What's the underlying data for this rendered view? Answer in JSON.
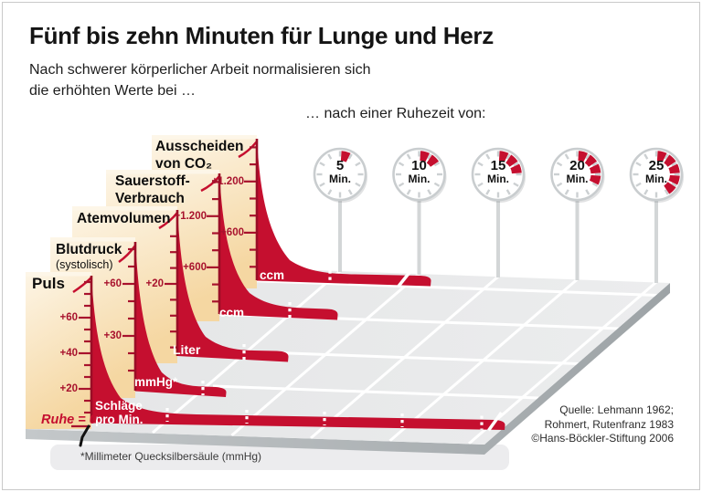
{
  "header": {
    "title": "Fünf bis zehn Minuten für Lunge und Herz",
    "subtitle_line1": "Nach schwerer körperlicher Arbeit normalisieren sich",
    "subtitle_line2": "die erhöhten Werte bei …",
    "rest_period_label": "… nach einer Ruhezeit von:"
  },
  "clocks": [
    {
      "value": "5",
      "unit": "Min."
    },
    {
      "value": "10",
      "unit": "Min."
    },
    {
      "value": "15",
      "unit": "Min."
    },
    {
      "value": "20",
      "unit": "Min."
    },
    {
      "value": "25",
      "unit": "Min."
    }
  ],
  "panels": [
    {
      "id": "puls",
      "label": "Puls",
      "sublabel": "",
      "label2": "",
      "unit_line1": "Schläge",
      "unit_line2": "pro Min.",
      "tick_labels": [
        "+60",
        "+40",
        "+20"
      ]
    },
    {
      "id": "blutdruck",
      "label": "Blutdruck",
      "sublabel": "(systolisch)",
      "label2": "",
      "unit_line1": "mmHg*",
      "unit_line2": "",
      "tick_labels": [
        "+60",
        "+30"
      ]
    },
    {
      "id": "atemvolumen",
      "label": "Atemvolumen",
      "sublabel": "",
      "label2": "",
      "unit_line1": "Liter",
      "unit_line2": "",
      "tick_labels": [
        "+20"
      ]
    },
    {
      "id": "sauerstoff",
      "label": "Sauerstoff-",
      "sublabel": "",
      "label2": "Verbrauch",
      "unit_line1": "ccm",
      "unit_line2": "",
      "tick_labels": [
        "+1.200",
        "+600"
      ]
    },
    {
      "id": "co2",
      "label": "Ausscheiden",
      "sublabel": "",
      "label2": "von CO₂",
      "unit_line1": "ccm",
      "unit_line2": "",
      "tick_labels": [
        "+1.200",
        "+600"
      ]
    }
  ],
  "baseline_label": "Ruhe = 0",
  "footnote": "*Millimeter Quecksilbersäule (mmHg)",
  "source_lines": [
    "Quelle: Lehmann 1962;",
    "Rohmert, Rutenfranz 1983",
    "©Hans-Böckler-Stiftung 2006"
  ],
  "colors": {
    "curve_red": "#c50f2f",
    "dark_red": "#a8122d",
    "panel_cream_light": "#fdf5e6",
    "panel_cream_dark": "#f6d9a5",
    "floor_gray": "#e8e9ea",
    "floor_side_gray": "#a8adb0",
    "clock_gray": "#c9cdcf"
  },
  "chart_data": {
    "type": "area",
    "title": "Fünf bis zehn Minuten für Lunge und Herz",
    "subtitle": "Nach schwerer körperlicher Arbeit normalisieren sich die erhöhten Werte bei …",
    "xlabel": "… nach einer Ruhezeit von: (Min.)",
    "x_ticks_min": [
      5,
      10,
      15,
      20,
      25
    ],
    "baseline": "Ruhe = 0",
    "grid": true,
    "legend_position": "none",
    "series": [
      {
        "name": "Puls",
        "unit": "Schläge pro Min.",
        "y_axis_labels_visible": [
          "+60",
          "+40",
          "+20"
        ],
        "approx_normalization_min": 26,
        "relative_elevation_at_min": {
          "0": 1.0,
          "5": 0.1,
          "10": 0.06,
          "15": 0.04,
          "20": 0.03,
          "25": 0.02
        }
      },
      {
        "name": "Blutdruck (systolisch)",
        "unit": "mmHg",
        "y_axis_labels_visible": [
          "+60",
          "+30"
        ],
        "approx_normalization_min": 7,
        "relative_elevation_at_min": {
          "0": 1.0,
          "5": 0.07,
          "10": 0.0,
          "15": 0.0,
          "20": 0.0,
          "25": 0.0
        }
      },
      {
        "name": "Atemvolumen",
        "unit": "Liter",
        "y_axis_labels_visible": [
          "+20"
        ],
        "approx_normalization_min": 8,
        "relative_elevation_at_min": {
          "0": 1.0,
          "5": 0.08,
          "10": 0.0,
          "15": 0.0,
          "20": 0.0,
          "25": 0.0
        }
      },
      {
        "name": "Sauerstoff-Verbrauch",
        "unit": "ccm",
        "y_axis_labels_visible": [
          "+1.200",
          "+600"
        ],
        "approx_normalization_min": 8,
        "relative_elevation_at_min": {
          "0": 1.0,
          "5": 0.08,
          "10": 0.0,
          "15": 0.0,
          "20": 0.0,
          "25": 0.0
        }
      },
      {
        "name": "Ausscheiden von CO₂",
        "unit": "ccm",
        "y_axis_labels_visible": [
          "+1.200",
          "+600"
        ],
        "approx_normalization_min": 11,
        "relative_elevation_at_min": {
          "0": 1.0,
          "5": 0.09,
          "10": 0.03,
          "15": 0.0,
          "20": 0.0,
          "25": 0.0
        }
      }
    ]
  }
}
